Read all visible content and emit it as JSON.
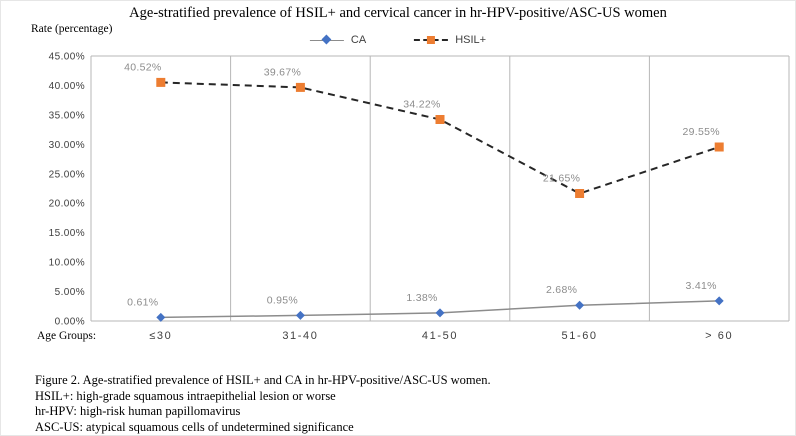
{
  "title": "Age-stratified prevalence of HSIL+ and cervical cancer in hr-HPV-positive/ASC-US women",
  "chart_data": {
    "type": "line",
    "title": "Age-stratified prevalence of HSIL+ and cervical cancer in hr-HPV-positive/ASC-US women",
    "categories": [
      "≤30",
      "31-40",
      "41-50",
      "51-60",
      "> 60"
    ],
    "series": [
      {
        "name": "CA",
        "values": [
          0.61,
          0.95,
          1.38,
          2.68,
          3.41
        ],
        "labels": [
          "0.61%",
          "0.95%",
          "1.38%",
          "2.68%",
          "3.41%"
        ],
        "marker": "diamond",
        "marker_color": "#4472C4",
        "line_color": "#8c8c8c",
        "line_style": "solid",
        "line_width": 1.5
      },
      {
        "name": "HSIL+",
        "values": [
          40.52,
          39.67,
          34.22,
          21.65,
          29.55
        ],
        "labels": [
          "40.52%",
          "39.67%",
          "34.22%",
          "21.65%",
          "29.55%"
        ],
        "marker": "square",
        "marker_color": "#ED7D31",
        "line_color": "#262626",
        "line_style": "dashed",
        "line_width": 2
      }
    ],
    "xlabel": "Age Groups:",
    "ylabel": "Rate (percentage)",
    "ylim": [
      0,
      45
    ],
    "ytick_step": 5,
    "ytick_labels": [
      "0.00%",
      "5.00%",
      "10.00%",
      "15.00%",
      "20.00%",
      "25.00%",
      "30.00%",
      "35.00%",
      "40.00%",
      "45.00%"
    ],
    "legend_position": "top",
    "grid": "vertical-only",
    "colors": {
      "grid": "#b7b7b7",
      "tick_text": "#404040",
      "data_label": "#8c8c8c"
    }
  },
  "caption": {
    "lines": [
      "Figure 2. Age-stratified prevalence of HSIL+ and CA in hr-HPV-positive/ASC-US women.",
      "HSIL+: high-grade squamous intraepithelial lesion or worse",
      "hr-HPV: high-risk human papillomavirus",
      "ASC-US: atypical squamous cells of undetermined significance"
    ]
  }
}
